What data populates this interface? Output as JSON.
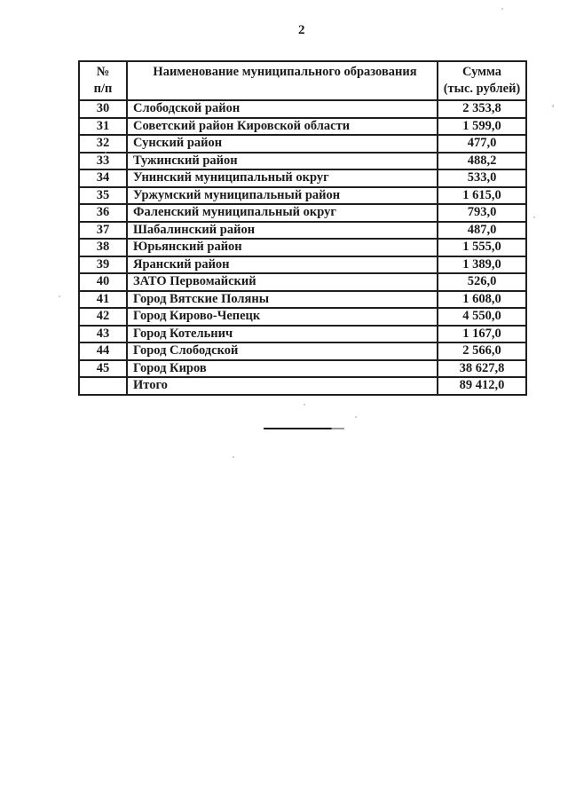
{
  "page": {
    "number": "2"
  },
  "ink_color": "#1b1b1b",
  "table": {
    "header": {
      "num_line1": "№",
      "num_line2": "п/п",
      "name": "Наименование муниципального образования",
      "sum_line1": "Сумма",
      "sum_line2": "(тыс. рублей)"
    },
    "rows": [
      {
        "num": "30",
        "name": "Слободской район",
        "sum": "2 353,8"
      },
      {
        "num": "31",
        "name": "Советский район Кировской области",
        "sum": "1 599,0"
      },
      {
        "num": "32",
        "name": "Сунский район",
        "sum": "477,0"
      },
      {
        "num": "33",
        "name": "Тужинский район",
        "sum": "488,2"
      },
      {
        "num": "34",
        "name": "Унинский муниципальный округ",
        "sum": "533,0"
      },
      {
        "num": "35",
        "name": "Уржумский муниципальный район",
        "sum": "1 615,0"
      },
      {
        "num": "36",
        "name": "Фаленский муниципальный округ",
        "sum": "793,0"
      },
      {
        "num": "37",
        "name": "Шабалинский район",
        "sum": "487,0"
      },
      {
        "num": "38",
        "name": "Юрьянский район",
        "sum": "1 555,0"
      },
      {
        "num": "39",
        "name": "Яранский район",
        "sum": "1 389,0"
      },
      {
        "num": "40",
        "name": "ЗАТО Первомайский",
        "sum": "526,0"
      },
      {
        "num": "41",
        "name": "Город Вятские Поляны",
        "sum": "1 608,0"
      },
      {
        "num": "42",
        "name": "Город Кирово-Чепецк",
        "sum": "4 550,0"
      },
      {
        "num": "43",
        "name": "Город Котельнич",
        "sum": "1 167,0"
      },
      {
        "num": "44",
        "name": "Город Слободской",
        "sum": "2 566,0"
      },
      {
        "num": "45",
        "name": "Город Киров",
        "sum": "38 627,8"
      },
      {
        "num": "",
        "name": "Итого",
        "sum": "89 412,0"
      }
    ]
  }
}
